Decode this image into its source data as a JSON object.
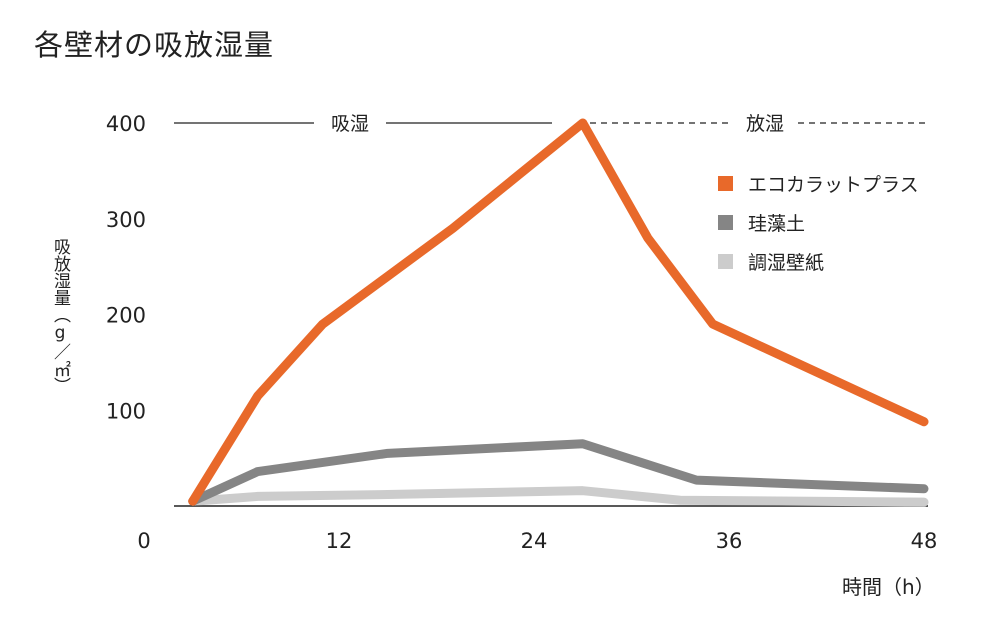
{
  "title": "各壁材の吸放湿量",
  "ylabel": "吸放湿量（g／㎡）",
  "xunit": "時間（h）",
  "phases": {
    "absorb": "吸湿",
    "release": "放湿"
  },
  "chart_data": {
    "type": "line",
    "title": "各壁材の吸放湿量",
    "xlabel": "時間（h）",
    "ylabel": "吸放湿量（g／㎡）",
    "xlim": [
      0,
      48
    ],
    "ylim": [
      0,
      400
    ],
    "x_ticks": [
      "0",
      "12",
      "24",
      "36",
      "48"
    ],
    "y_ticks": [
      "100",
      "200",
      "300",
      "400"
    ],
    "grid": false,
    "legend_position": "top-right",
    "annotations": [
      "吸湿",
      "放湿"
    ],
    "series": [
      {
        "name": "エコカラットプラス",
        "color": "#e8692a",
        "x": [
          3,
          7,
          11,
          15,
          19,
          23,
          27,
          31,
          35,
          48
        ],
        "y": [
          5,
          115,
          190,
          240,
          290,
          345,
          400,
          280,
          190,
          88
        ]
      },
      {
        "name": "珪藻土",
        "color": "#858585",
        "x": [
          3,
          7,
          15,
          27,
          34,
          48
        ],
        "y": [
          5,
          36,
          55,
          65,
          27,
          18
        ]
      },
      {
        "name": "調湿壁紙",
        "color": "#cccccc",
        "x": [
          3,
          7,
          15,
          27,
          33,
          48
        ],
        "y": [
          5,
          10,
          12,
          16,
          6,
          4
        ]
      }
    ]
  }
}
